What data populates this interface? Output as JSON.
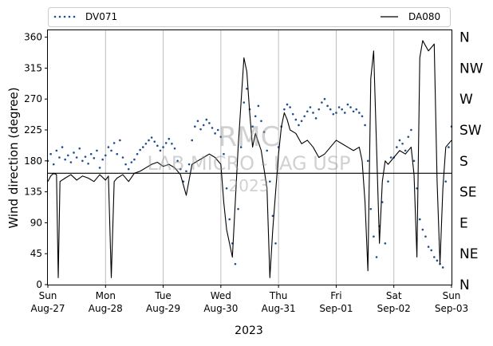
{
  "chart_data": {
    "type": "scatter",
    "ylabel": "Wind direction (degree)",
    "xlabel": "2023",
    "ylim": [
      0,
      370
    ],
    "grid": "vertical lines at each day",
    "legend_placement": "top",
    "watermark": [
      "RMC",
      "LAB MICRO - IAG USP",
      "2023"
    ],
    "x_ticks": [
      {
        "day": 0,
        "line1": "Sun",
        "line2": "Aug-27"
      },
      {
        "day": 1,
        "line1": "Mon",
        "line2": "Aug-28"
      },
      {
        "day": 2,
        "line1": "Tue",
        "line2": "Aug-29"
      },
      {
        "day": 3,
        "line1": "Wed",
        "line2": "Aug-30"
      },
      {
        "day": 4,
        "line1": "Thu",
        "line2": "Aug-31"
      },
      {
        "day": 5,
        "line1": "Fri",
        "line2": "Sep-01"
      },
      {
        "day": 6,
        "line1": "Sat",
        "line2": "Sep-02"
      },
      {
        "day": 7,
        "line1": "Sun",
        "line2": "Sep-03"
      }
    ],
    "y_ticks": [
      0,
      45,
      90,
      135,
      180,
      225,
      270,
      315,
      360
    ],
    "compass_labels": [
      {
        "value": 0,
        "label": "N"
      },
      {
        "value": 45,
        "label": "NE"
      },
      {
        "value": 90,
        "label": "E"
      },
      {
        "value": 135,
        "label": "SE"
      },
      {
        "value": 180,
        "label": "S"
      },
      {
        "value": 225,
        "label": "SW"
      },
      {
        "value": 270,
        "label": "W"
      },
      {
        "value": 315,
        "label": "NW"
      },
      {
        "value": 360,
        "label": "N"
      }
    ],
    "reference_line": 162,
    "series": [
      {
        "name": "DV071",
        "style": "dotted-markers",
        "color": "#1f4e8c",
        "points": [
          [
            0.0,
            180
          ],
          [
            0.05,
            190
          ],
          [
            0.1,
            175
          ],
          [
            0.15,
            195
          ],
          [
            0.2,
            185
          ],
          [
            0.25,
            200
          ],
          [
            0.3,
            182
          ],
          [
            0.35,
            188
          ],
          [
            0.4,
            178
          ],
          [
            0.45,
            192
          ],
          [
            0.5,
            185
          ],
          [
            0.55,
            198
          ],
          [
            0.6,
            180
          ],
          [
            0.65,
            186
          ],
          [
            0.7,
            176
          ],
          [
            0.75,
            190
          ],
          [
            0.8,
            184
          ],
          [
            0.85,
            195
          ],
          [
            0.9,
            170
          ],
          [
            0.95,
            182
          ],
          [
            1.0,
            188
          ],
          [
            1.05,
            200
          ],
          [
            1.1,
            195
          ],
          [
            1.15,
            206
          ],
          [
            1.2,
            190
          ],
          [
            1.25,
            210
          ],
          [
            1.3,
            185
          ],
          [
            1.35,
            175
          ],
          [
            1.4,
            168
          ],
          [
            1.45,
            178
          ],
          [
            1.5,
            182
          ],
          [
            1.55,
            190
          ],
          [
            1.6,
            196
          ],
          [
            1.65,
            200
          ],
          [
            1.7,
            205
          ],
          [
            1.75,
            210
          ],
          [
            1.8,
            214
          ],
          [
            1.85,
            208
          ],
          [
            1.9,
            202
          ],
          [
            1.95,
            195
          ],
          [
            2.0,
            200
          ],
          [
            2.05,
            206
          ],
          [
            2.1,
            212
          ],
          [
            2.15,
            205
          ],
          [
            2.2,
            198
          ],
          [
            2.25,
            180
          ],
          [
            2.3,
            168
          ],
          [
            2.35,
            150
          ],
          [
            2.4,
            165
          ],
          [
            2.45,
            175
          ],
          [
            2.5,
            210
          ],
          [
            2.55,
            230
          ],
          [
            2.6,
            238
          ],
          [
            2.65,
            226
          ],
          [
            2.7,
            232
          ],
          [
            2.75,
            240
          ],
          [
            2.8,
            235
          ],
          [
            2.85,
            228
          ],
          [
            2.9,
            220
          ],
          [
            2.95,
            225
          ],
          [
            3.0,
            215
          ],
          [
            3.05,
            190
          ],
          [
            3.1,
            140
          ],
          [
            3.15,
            95
          ],
          [
            3.2,
            60
          ],
          [
            3.25,
            30
          ],
          [
            3.3,
            110
          ],
          [
            3.35,
            200
          ],
          [
            3.4,
            265
          ],
          [
            3.45,
            285
          ],
          [
            3.5,
            255
          ],
          [
            3.55,
            230
          ],
          [
            3.6,
            245
          ],
          [
            3.65,
            260
          ],
          [
            3.7,
            238
          ],
          [
            3.75,
            222
          ],
          [
            3.8,
            195
          ],
          [
            3.85,
            150
          ],
          [
            3.9,
            100
          ],
          [
            3.95,
            60
          ],
          [
            4.0,
            200
          ],
          [
            4.05,
            230
          ],
          [
            4.1,
            255
          ],
          [
            4.15,
            262
          ],
          [
            4.2,
            258
          ],
          [
            4.25,
            248
          ],
          [
            4.3,
            240
          ],
          [
            4.35,
            232
          ],
          [
            4.4,
            238
          ],
          [
            4.45,
            245
          ],
          [
            4.5,
            252
          ],
          [
            4.55,
            258
          ],
          [
            4.6,
            250
          ],
          [
            4.65,
            242
          ],
          [
            4.7,
            255
          ],
          [
            4.75,
            265
          ],
          [
            4.8,
            270
          ],
          [
            4.85,
            260
          ],
          [
            4.9,
            255
          ],
          [
            4.95,
            248
          ],
          [
            5.0,
            250
          ],
          [
            5.05,
            258
          ],
          [
            5.1,
            255
          ],
          [
            5.15,
            250
          ],
          [
            5.2,
            262
          ],
          [
            5.25,
            258
          ],
          [
            5.3,
            252
          ],
          [
            5.35,
            255
          ],
          [
            5.4,
            250
          ],
          [
            5.45,
            245
          ],
          [
            5.5,
            232
          ],
          [
            5.55,
            180
          ],
          [
            5.6,
            110
          ],
          [
            5.65,
            70
          ],
          [
            5.7,
            40
          ],
          [
            5.75,
            85
          ],
          [
            5.8,
            120
          ],
          [
            5.85,
            60
          ],
          [
            5.9,
            150
          ],
          [
            5.95,
            185
          ],
          [
            6.0,
            185
          ],
          [
            6.05,
            200
          ],
          [
            6.1,
            210
          ],
          [
            6.15,
            205
          ],
          [
            6.2,
            195
          ],
          [
            6.25,
            215
          ],
          [
            6.3,
            225
          ],
          [
            6.35,
            180
          ],
          [
            6.4,
            140
          ],
          [
            6.45,
            95
          ],
          [
            6.5,
            80
          ],
          [
            6.55,
            70
          ],
          [
            6.6,
            55
          ],
          [
            6.65,
            50
          ],
          [
            6.7,
            40
          ],
          [
            6.75,
            35
          ],
          [
            6.8,
            30
          ],
          [
            6.85,
            25
          ],
          [
            6.9,
            150
          ],
          [
            6.95,
            200
          ],
          [
            7.0,
            230
          ]
        ]
      },
      {
        "name": "DA080",
        "style": "line",
        "color": "#000000",
        "points": [
          [
            0.0,
            150
          ],
          [
            0.05,
            158
          ],
          [
            0.1,
            162
          ],
          [
            0.15,
            160
          ],
          [
            0.18,
            10
          ],
          [
            0.21,
            150
          ],
          [
            0.3,
            155
          ],
          [
            0.4,
            160
          ],
          [
            0.5,
            152
          ],
          [
            0.6,
            158
          ],
          [
            0.7,
            155
          ],
          [
            0.8,
            150
          ],
          [
            0.9,
            160
          ],
          [
            1.0,
            152
          ],
          [
            1.05,
            158
          ],
          [
            1.1,
            10
          ],
          [
            1.15,
            150
          ],
          [
            1.2,
            155
          ],
          [
            1.3,
            160
          ],
          [
            1.4,
            150
          ],
          [
            1.5,
            162
          ],
          [
            1.6,
            165
          ],
          [
            1.7,
            170
          ],
          [
            1.8,
            175
          ],
          [
            1.9,
            178
          ],
          [
            2.0,
            172
          ],
          [
            2.1,
            175
          ],
          [
            2.2,
            170
          ],
          [
            2.3,
            160
          ],
          [
            2.4,
            130
          ],
          [
            2.5,
            175
          ],
          [
            2.6,
            180
          ],
          [
            2.7,
            185
          ],
          [
            2.8,
            190
          ],
          [
            2.9,
            185
          ],
          [
            3.0,
            175
          ],
          [
            3.05,
            120
          ],
          [
            3.1,
            80
          ],
          [
            3.15,
            60
          ],
          [
            3.2,
            40
          ],
          [
            3.3,
            200
          ],
          [
            3.4,
            330
          ],
          [
            3.45,
            310
          ],
          [
            3.5,
            250
          ],
          [
            3.55,
            200
          ],
          [
            3.6,
            220
          ],
          [
            3.7,
            195
          ],
          [
            3.8,
            140
          ],
          [
            3.85,
            10
          ],
          [
            3.9,
            80
          ],
          [
            4.0,
            190
          ],
          [
            4.05,
            230
          ],
          [
            4.1,
            250
          ],
          [
            4.15,
            240
          ],
          [
            4.2,
            225
          ],
          [
            4.3,
            220
          ],
          [
            4.4,
            205
          ],
          [
            4.5,
            210
          ],
          [
            4.6,
            200
          ],
          [
            4.7,
            185
          ],
          [
            4.8,
            190
          ],
          [
            4.9,
            200
          ],
          [
            5.0,
            210
          ],
          [
            5.1,
            205
          ],
          [
            5.2,
            200
          ],
          [
            5.3,
            195
          ],
          [
            5.4,
            200
          ],
          [
            5.45,
            180
          ],
          [
            5.5,
            120
          ],
          [
            5.55,
            20
          ],
          [
            5.6,
            300
          ],
          [
            5.65,
            340
          ],
          [
            5.7,
            200
          ],
          [
            5.75,
            60
          ],
          [
            5.8,
            150
          ],
          [
            5.85,
            180
          ],
          [
            5.9,
            175
          ],
          [
            6.0,
            185
          ],
          [
            6.1,
            195
          ],
          [
            6.2,
            190
          ],
          [
            6.3,
            200
          ],
          [
            6.35,
            160
          ],
          [
            6.4,
            40
          ],
          [
            6.45,
            330
          ],
          [
            6.5,
            355
          ],
          [
            6.6,
            340
          ],
          [
            6.7,
            350
          ],
          [
            6.75,
            150
          ],
          [
            6.8,
            30
          ],
          [
            6.85,
            140
          ],
          [
            6.9,
            200
          ],
          [
            7.0,
            210
          ]
        ]
      }
    ]
  }
}
